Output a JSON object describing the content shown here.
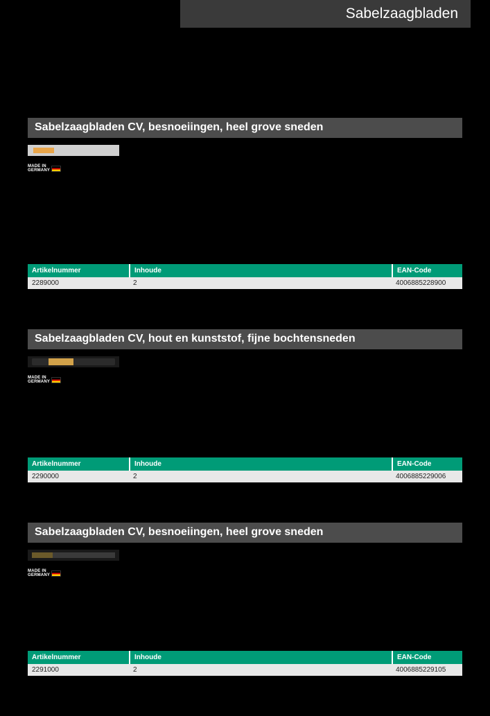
{
  "page": {
    "header_title": "Sabelzaagbladen",
    "background_color": "#000000"
  },
  "styling": {
    "section_title_bg": "#4c4c4c",
    "section_title_color": "#ffffff",
    "table_header_bg": "#009b77",
    "table_header_color": "#ffffff",
    "table_row_bg": "#e8e8e8",
    "table_row_color": "#222222",
    "header_banner_bg": "#3a3a3a"
  },
  "badge": {
    "made_in_line1": "MADE IN",
    "made_in_line2": "GERMANY",
    "flag_colors": [
      "#000000",
      "#dd0000",
      "#ffce00"
    ]
  },
  "table_columns": {
    "article": "Artikelnummer",
    "content": "Inhoude",
    "ean": "EAN-Code"
  },
  "sections": [
    {
      "title": "Sabelzaagbladen CV, besnoeiingen, heel grove sneden",
      "blade_variant": "blade-a",
      "row": {
        "article": "2289000",
        "content": "2",
        "ean": "4006885228900"
      }
    },
    {
      "title": "Sabelzaagbladen CV, hout en kunststof, fijne bochtensneden",
      "blade_variant": "blade-b",
      "row": {
        "article": "2290000",
        "content": "2",
        "ean": "4006885229006"
      }
    },
    {
      "title": "Sabelzaagbladen CV, besnoeiingen, heel grove sneden",
      "blade_variant": "blade-c",
      "row": {
        "article": "2291000",
        "content": "2",
        "ean": "4006885229105"
      }
    }
  ]
}
